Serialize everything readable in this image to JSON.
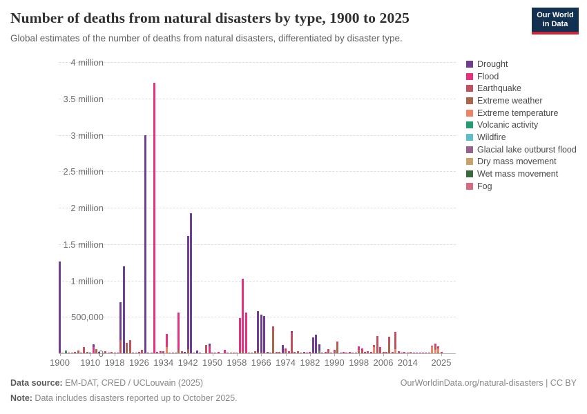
{
  "header": {
    "title": "Number of deaths from natural disasters by type, 1900 to 2025",
    "subtitle": "Global estimates of the number of deaths from natural disasters, differentiated by disaster type."
  },
  "logo": {
    "line1": "Our World",
    "line2": "in Data",
    "bg_color": "#12304f",
    "strip_color": "#c3293a"
  },
  "legend": {
    "items": [
      {
        "key": "drought",
        "label": "Drought",
        "color": "#6d3e91"
      },
      {
        "key": "flood",
        "label": "Flood",
        "color": "#e6327e"
      },
      {
        "key": "earthquake",
        "label": "Earthquake",
        "color": "#c2505f"
      },
      {
        "key": "extreme_weather",
        "label": "Extreme weather",
        "color": "#a8654c"
      },
      {
        "key": "extreme_temperature",
        "label": "Extreme temperature",
        "color": "#ee8464"
      },
      {
        "key": "volcanic",
        "label": "Volcanic activity",
        "color": "#249c73"
      },
      {
        "key": "wildfire",
        "label": "Wildfire",
        "color": "#5fbcca"
      },
      {
        "key": "glacial",
        "label": "Glacial lake outburst flood",
        "color": "#99618c"
      },
      {
        "key": "dry_mass",
        "label": "Dry mass movement",
        "color": "#c8a168"
      },
      {
        "key": "wet_mass",
        "label": "Wet mass movement",
        "color": "#38683c"
      },
      {
        "key": "fog",
        "label": "Fog",
        "color": "#d56a80"
      }
    ]
  },
  "footer": {
    "source_label": "Data source:",
    "source_value": " EM-DAT, CRED / UCLouvain (2025)",
    "note_label": "Note:",
    "note_value": " Data includes disasters reported up to October 2025.",
    "link": "OurWorldinData.org/natural-disasters | CC BY"
  },
  "chart_data": {
    "type": "bar",
    "stacked": true,
    "title": "Number of deaths from natural disasters by type, 1900 to 2025",
    "xlabel": "",
    "ylabel": "",
    "x_range": [
      1900,
      2025
    ],
    "ylim": [
      0,
      4000000
    ],
    "grid": "dashed-horizontal",
    "legend_position": "right",
    "stack_order_bottom_to_top": [
      "extreme_weather",
      "extreme_temperature",
      "volcanic",
      "wildfire",
      "glacial",
      "dry_mass",
      "wet_mass",
      "fog",
      "earthquake",
      "flood",
      "drought"
    ],
    "x_ticks": [
      1900,
      1910,
      1918,
      1926,
      1934,
      1942,
      1950,
      1958,
      1966,
      1974,
      1982,
      1990,
      1998,
      2006,
      2014,
      2025
    ],
    "y_ticks": [
      {
        "value": 0,
        "label": "0"
      },
      {
        "value": 500000,
        "label": "500,000"
      },
      {
        "value": 1000000,
        "label": "1 million"
      },
      {
        "value": 1500000,
        "label": "1.5 million"
      },
      {
        "value": 2000000,
        "label": "2 million"
      },
      {
        "value": 2500000,
        "label": "2.5 million"
      },
      {
        "value": 3000000,
        "label": "3 million"
      },
      {
        "value": 3500000,
        "label": "3.5 million"
      },
      {
        "value": 4000000,
        "label": "4 million"
      }
    ],
    "bars": [
      {
        "year": 1900,
        "drought": 1250000,
        "extreme_weather": 8000
      },
      {
        "year": 1901,
        "extreme_temperature": 10000
      },
      {
        "year": 1902,
        "volcanic": 30000,
        "earthquake": 2500
      },
      {
        "year": 1903,
        "flood": 2000
      },
      {
        "year": 1904,
        "extreme_weather": 1500
      },
      {
        "year": 1905,
        "earthquake": 20000
      },
      {
        "year": 1906,
        "earthquake": 25000,
        "extreme_weather": 15000
      },
      {
        "year": 1907,
        "earthquake": 12000
      },
      {
        "year": 1908,
        "earthquake": 87000
      },
      {
        "year": 1909,
        "extreme_weather": 15000
      },
      {
        "year": 1910,
        "drought": 12000
      },
      {
        "year": 1911,
        "drought": 40000,
        "flood": 85000
      },
      {
        "year": 1912,
        "extreme_weather": 55000
      },
      {
        "year": 1913,
        "drought": 18000
      },
      {
        "year": 1915,
        "earthquake": 33000
      },
      {
        "year": 1916,
        "flood": 10000
      },
      {
        "year": 1917,
        "earthquake": 20000
      },
      {
        "year": 1918,
        "extreme_weather": 10000
      },
      {
        "year": 1919,
        "flood": 5000
      },
      {
        "year": 1920,
        "earthquake": 180000,
        "drought": 520000
      },
      {
        "year": 1921,
        "drought": 1190000
      },
      {
        "year": 1922,
        "extreme_weather": 100000,
        "earthquake": 45000
      },
      {
        "year": 1923,
        "earthquake": 145000,
        "extreme_weather": 35000
      },
      {
        "year": 1924,
        "flood": 10000
      },
      {
        "year": 1925,
        "extreme_weather": 8000
      },
      {
        "year": 1926,
        "flood": 15000
      },
      {
        "year": 1927,
        "earthquake": 45000
      },
      {
        "year": 1928,
        "drought": 3000000
      },
      {
        "year": 1929,
        "flood": 10000
      },
      {
        "year": 1930,
        "extreme_weather": 10000
      },
      {
        "year": 1931,
        "flood": 3720000
      },
      {
        "year": 1932,
        "flood": 15000,
        "earthquake": 5000
      },
      {
        "year": 1933,
        "earthquake": 18000,
        "flood": 15000
      },
      {
        "year": 1934,
        "flood": 20000,
        "earthquake": 11000
      },
      {
        "year": 1935,
        "extreme_temperature": 90000,
        "flood": 180000
      },
      {
        "year": 1936,
        "extreme_weather": 5000
      },
      {
        "year": 1937,
        "flood": 10000
      },
      {
        "year": 1938,
        "extreme_weather": 10000
      },
      {
        "year": 1939,
        "extreme_weather": 50000,
        "flood": 505000
      },
      {
        "year": 1940,
        "earthquake": 30000
      },
      {
        "year": 1941,
        "drought": 20000
      },
      {
        "year": 1942,
        "extreme_weather": 61000,
        "drought": 1550000
      },
      {
        "year": 1943,
        "drought": 1920000
      },
      {
        "year": 1944,
        "earthquake": 10000
      },
      {
        "year": 1945,
        "drought": 35000
      },
      {
        "year": 1946,
        "earthquake": 6000
      },
      {
        "year": 1948,
        "earthquake": 115000
      },
      {
        "year": 1949,
        "flood": 95000,
        "drought": 40000
      },
      {
        "year": 1950,
        "flood": 10000
      },
      {
        "year": 1951,
        "earthquake": 5000
      },
      {
        "year": 1952,
        "flood": 20000
      },
      {
        "year": 1954,
        "flood": 45000
      },
      {
        "year": 1955,
        "flood": 10000
      },
      {
        "year": 1956,
        "extreme_weather": 5000
      },
      {
        "year": 1957,
        "earthquake": 5000
      },
      {
        "year": 1958,
        "flood": 12000
      },
      {
        "year": 1959,
        "extreme_weather": 20000,
        "flood": 460000
      },
      {
        "year": 1960,
        "extreme_weather": 15000,
        "flood": 1010000
      },
      {
        "year": 1961,
        "flood": 560000
      },
      {
        "year": 1962,
        "earthquake": 12000
      },
      {
        "year": 1963,
        "extreme_weather": 12000
      },
      {
        "year": 1964,
        "extreme_weather": 20000,
        "flood": 10000
      },
      {
        "year": 1965,
        "extreme_weather": 20000,
        "drought": 560000
      },
      {
        "year": 1966,
        "drought": 520000,
        "earthquake": 10000
      },
      {
        "year": 1967,
        "drought": 500000,
        "flood": 10000
      },
      {
        "year": 1968,
        "earthquake": 12000,
        "drought": 8000
      },
      {
        "year": 1969,
        "extreme_weather": 10000
      },
      {
        "year": 1970,
        "extreme_weather": 303000,
        "earthquake": 67000
      },
      {
        "year": 1971,
        "flood": 10000,
        "extreme_weather": 10000
      },
      {
        "year": 1972,
        "earthquake": 15000,
        "extreme_weather": 5000
      },
      {
        "year": 1973,
        "flood": 12000,
        "drought": 100000
      },
      {
        "year": 1974,
        "flood": 30000,
        "extreme_weather": 20000,
        "earthquake": 15000
      },
      {
        "year": 1975,
        "flood": 30000
      },
      {
        "year": 1976,
        "earthquake": 285000,
        "drought": 20000
      },
      {
        "year": 1977,
        "extreme_weather": 15000,
        "earthquake": 5000
      },
      {
        "year": 1978,
        "earthquake": 25000
      },
      {
        "year": 1979,
        "extreme_weather": 10000
      },
      {
        "year": 1980,
        "earthquake": 10000,
        "drought": 5000
      },
      {
        "year": 1981,
        "flood": 8000
      },
      {
        "year": 1982,
        "flood": 10000,
        "earthquake": 5000
      },
      {
        "year": 1983,
        "extreme_weather": 5000,
        "drought": 215000
      },
      {
        "year": 1984,
        "drought": 260000
      },
      {
        "year": 1985,
        "volcanic": 23000,
        "earthquake": 10000,
        "extreme_weather": 5000,
        "drought": 87000
      },
      {
        "year": 1986,
        "flood": 5000
      },
      {
        "year": 1987,
        "earthquake": 8000,
        "flood": 8000
      },
      {
        "year": 1988,
        "earthquake": 35000,
        "flood": 10000,
        "extreme_weather": 10000
      },
      {
        "year": 1989,
        "earthquake": 5000,
        "flood": 5000
      },
      {
        "year": 1990,
        "earthquake": 45000,
        "flood": 5000
      },
      {
        "year": 1991,
        "extreme_weather": 140000,
        "flood": 10000,
        "earthquake": 5000
      },
      {
        "year": 1992,
        "flood": 5000,
        "earthquake": 5000
      },
      {
        "year": 1993,
        "flood": 10000,
        "earthquake": 10000
      },
      {
        "year": 1994,
        "flood": 5000
      },
      {
        "year": 1995,
        "earthquake": 8000,
        "flood": 5000
      },
      {
        "year": 1996,
        "flood": 10000
      },
      {
        "year": 1997,
        "flood": 6000
      },
      {
        "year": 1998,
        "extreme_weather": 30000,
        "flood": 45000,
        "earthquake": 9000,
        "extreme_temperature": 10000
      },
      {
        "year": 1999,
        "earthquake": 20000,
        "flood": 35000,
        "extreme_weather": 12000
      },
      {
        "year": 2000,
        "flood": 10000,
        "extreme_weather": 5000
      },
      {
        "year": 2001,
        "earthquake": 21000,
        "flood": 5000
      },
      {
        "year": 2002,
        "earthquake": 5000,
        "flood": 5000,
        "extreme_temperature": 3000
      },
      {
        "year": 2003,
        "extreme_temperature": 85000,
        "earthquake": 31000
      },
      {
        "year": 2004,
        "earthquake": 228000,
        "extreme_weather": 8000
      },
      {
        "year": 2005,
        "earthquake": 76000,
        "extreme_weather": 5000,
        "flood": 6000
      },
      {
        "year": 2006,
        "earthquake": 6000,
        "flood": 6000,
        "extreme_weather": 4000
      },
      {
        "year": 2007,
        "extreme_weather": 6000,
        "flood": 10000
      },
      {
        "year": 2008,
        "extreme_weather": 140000,
        "earthquake": 88000
      },
      {
        "year": 2009,
        "earthquake": 3000,
        "extreme_weather": 3000,
        "flood": 3000
      },
      {
        "year": 2010,
        "earthquake": 227000,
        "extreme_temperature": 56000,
        "flood": 12000
      },
      {
        "year": 2011,
        "earthquake": 20000,
        "flood": 8000
      },
      {
        "year": 2012,
        "extreme_weather": 3000,
        "flood": 4000
      },
      {
        "year": 2013,
        "extreme_weather": 8000,
        "flood": 7000
      },
      {
        "year": 2014,
        "flood": 6000
      },
      {
        "year": 2015,
        "earthquake": 10000,
        "extreme_temperature": 7000
      },
      {
        "year": 2016,
        "flood": 6000,
        "extreme_temperature": 2000
      },
      {
        "year": 2017,
        "flood": 6000,
        "extreme_weather": 3000
      },
      {
        "year": 2018,
        "earthquake": 5000,
        "flood": 5000
      },
      {
        "year": 2019,
        "flood": 5000,
        "extreme_weather": 3000
      },
      {
        "year": 2020,
        "flood": 7000,
        "extreme_temperature": 5000
      },
      {
        "year": 2021,
        "flood": 7000,
        "earthquake": 3000
      },
      {
        "year": 2022,
        "extreme_temperature": 93000,
        "flood": 8000
      },
      {
        "year": 2023,
        "extreme_temperature": 47000,
        "flood": 20000,
        "earthquake": 63000
      },
      {
        "year": 2024,
        "extreme_temperature": 60000,
        "flood": 20000,
        "extreme_weather": 10000,
        "earthquake": 5000
      },
      {
        "year": 2025,
        "flood": 8000,
        "extreme_weather": 4000,
        "earthquake": 3000
      }
    ]
  }
}
